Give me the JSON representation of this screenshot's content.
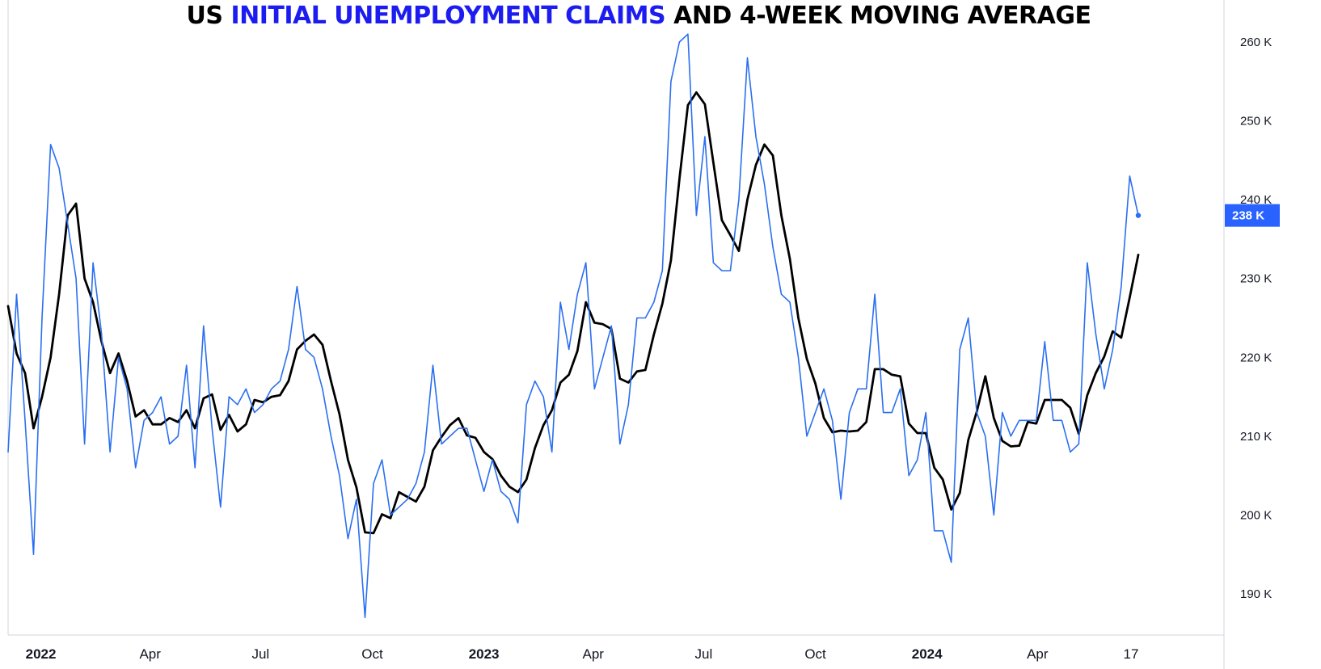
{
  "title": {
    "prefix": "US ",
    "highlight": "INITIAL UNEMPLOYMENT CLAIMS",
    "suffix": " AND 4-WEEK MOVING AVERAGE"
  },
  "colors": {
    "claims": "#2a6ff0",
    "moving_average": "#000000",
    "title_highlight": "#1c1cf0",
    "badge": "#2962ff"
  },
  "price_badge": "238 K",
  "chart_data": {
    "type": "line",
    "title": "US INITIAL UNEMPLOYMENT CLAIMS AND 4-WEEK MOVING AVERAGE",
    "xlabel": "",
    "ylabel": "",
    "ylim": [
      183000,
      263000
    ],
    "y_axis_position": "right",
    "grid": false,
    "y_ticks": [
      {
        "value": 190000,
        "label": "190 K"
      },
      {
        "value": 200000,
        "label": "200 K"
      },
      {
        "value": 210000,
        "label": "210 K"
      },
      {
        "value": 220000,
        "label": "220 K"
      },
      {
        "value": 230000,
        "label": "230 K"
      },
      {
        "value": 240000,
        "label": "240 K"
      },
      {
        "value": 250000,
        "label": "250 K"
      },
      {
        "value": 260000,
        "label": "260 K"
      }
    ],
    "x_ticks": [
      {
        "date": "2022-01-01",
        "label": "2022",
        "bold": true
      },
      {
        "date": "2022-04-01",
        "label": "Apr",
        "bold": false
      },
      {
        "date": "2022-07-01",
        "label": "Jul",
        "bold": false
      },
      {
        "date": "2022-10-01",
        "label": "Oct",
        "bold": false
      },
      {
        "date": "2023-01-01",
        "label": "2023",
        "bold": true
      },
      {
        "date": "2023-04-01",
        "label": "Apr",
        "bold": false
      },
      {
        "date": "2023-07-01",
        "label": "Jul",
        "bold": false
      },
      {
        "date": "2023-10-01",
        "label": "Oct",
        "bold": false
      },
      {
        "date": "2024-01-01",
        "label": "2024",
        "bold": true
      },
      {
        "date": "2024-04-01",
        "label": "Apr",
        "bold": false
      },
      {
        "date": "2024-06-17",
        "label": "17",
        "bold": false
      }
    ],
    "x_range": [
      "2021-12-05",
      "2024-07-21"
    ],
    "series": [
      {
        "kind": "claims",
        "weekly_dates": {
          "first": "2021-12-05",
          "step_days": 7
        },
        "values": [
          208000,
          228000,
          212000,
          195000,
          225000,
          247000,
          244000,
          237000,
          230000,
          209000,
          232000,
          223000,
          208000,
          220000,
          216000,
          206000,
          212000,
          213000,
          215000,
          209000,
          210000,
          219000,
          206000,
          224000,
          211000,
          201000,
          215000,
          214000,
          216000,
          213000,
          214000,
          216000,
          217000,
          221000,
          229000,
          221000,
          220000,
          216000,
          210000,
          205000,
          197000,
          202000,
          187000,
          204000,
          207000,
          200000,
          201000,
          202000,
          204000,
          208000,
          219000,
          209000,
          210000,
          211000,
          211000,
          207000,
          203000,
          207000,
          203000,
          202000,
          199000,
          214000,
          217000,
          215000,
          208000,
          227000,
          221000,
          228000,
          232000,
          216000,
          220000,
          224000,
          209000,
          214000,
          225000,
          225000,
          227000,
          231000,
          255000,
          260000,
          261000,
          238000,
          248000,
          232000,
          231000,
          231000,
          240000,
          258000,
          248000,
          242000,
          234000,
          228000,
          227000,
          220000,
          210000,
          213000,
          216000,
          212000,
          202000,
          213000,
          216000,
          216000,
          228000,
          213000,
          213000,
          216000,
          205000,
          207000,
          213000,
          198000,
          198000,
          194000,
          221000,
          225000,
          213000,
          210000,
          200000,
          213000,
          210000,
          212000,
          212000,
          212000,
          222000,
          212000,
          212000,
          208000,
          209000,
          232000,
          223000,
          216000,
          221000,
          229000,
          243000,
          238000
        ]
      },
      {
        "kind": "moving_average",
        "weekly_dates": {
          "first": "2021-12-05",
          "step_days": 7
        },
        "values": [
          226500,
          220500,
          218000,
          211000,
          215000,
          220000,
          228000,
          238000,
          239500,
          230000,
          227000,
          222000,
          218000,
          220500,
          217000,
          212500,
          213300,
          211500,
          211500,
          212300,
          211800,
          213300,
          211000,
          214800,
          215300,
          210800,
          212700,
          210600,
          211500,
          214600,
          214300,
          215000,
          215200,
          217000,
          221000,
          222100,
          222900,
          221600,
          217000,
          212800,
          207000,
          203500,
          197800,
          197700,
          200100,
          199600,
          202900,
          202300,
          201700,
          203600,
          208200,
          209900,
          211400,
          212300,
          210100,
          209800,
          208000,
          207100,
          205000,
          203600,
          202900,
          204500,
          208500,
          211400,
          213300,
          216800,
          217800,
          220800,
          227000,
          224400,
          224200,
          223600,
          217300,
          216800,
          218200,
          218400,
          222900,
          226800,
          232300,
          242600,
          252000,
          253600,
          252100,
          244700,
          237400,
          235500,
          233500,
          240000,
          244400,
          247000,
          245600,
          238000,
          232500,
          225000,
          219800,
          216700,
          212300,
          210500,
          210700,
          210600,
          210700,
          211800,
          218500,
          218500,
          217800,
          217600,
          211600,
          210400,
          210400,
          206000,
          204500,
          200700,
          202800,
          209500,
          213100,
          217600,
          212300,
          209400,
          208700,
          208800,
          211800,
          211600,
          214600,
          214600,
          214600,
          213600,
          210300,
          215200,
          218000,
          220100,
          223300,
          222500,
          227600,
          233000
        ]
      }
    ]
  }
}
